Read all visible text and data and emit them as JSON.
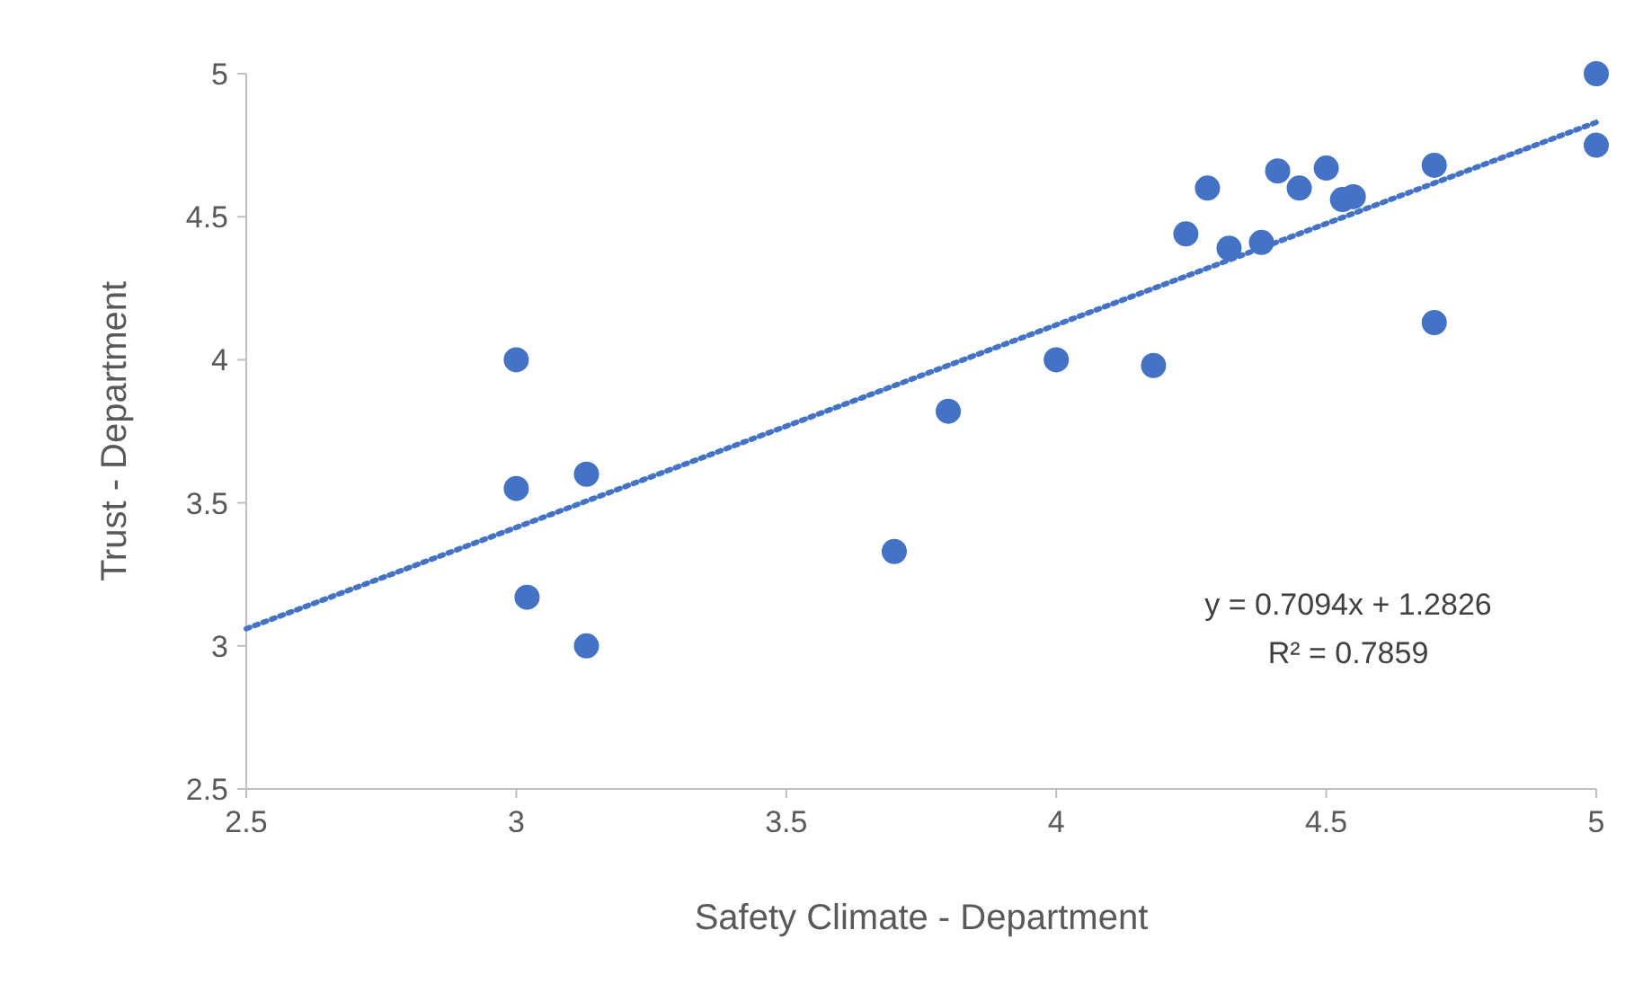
{
  "chart_data": {
    "type": "scatter",
    "xlabel": "Safety Climate - Department",
    "ylabel": "Trust - Department",
    "xlim": [
      2.5,
      5
    ],
    "xticks": [
      2.5,
      3,
      3.5,
      4,
      4.5,
      5
    ],
    "ylim": [
      2.5,
      5
    ],
    "yticks": [
      2.5,
      3,
      3.5,
      4,
      4.5,
      5
    ],
    "grid": false,
    "series": [
      {
        "color": "#4472c4",
        "marker": "circle",
        "x": [
          5,
          5,
          4.7,
          4.7,
          4.5,
          4.41,
          4.28,
          4.45,
          4.53,
          4.55,
          4.24,
          4.32,
          4.38,
          4.18,
          4.0,
          3.8,
          3.7,
          3.0,
          3.0,
          3.13,
          3.02,
          3.13
        ],
        "values": [
          5,
          4.75,
          4.68,
          4.13,
          4.67,
          4.66,
          4.6,
          4.6,
          4.56,
          4.57,
          4.44,
          4.39,
          4.41,
          3.98,
          4.0,
          3.82,
          3.33,
          4.0,
          3.55,
          3.6,
          3.17,
          3.0
        ]
      },
      {
        "type": "line",
        "color": "#4472c4",
        "line_style": "dotted",
        "x": [
          2.5,
          5
        ],
        "values": [
          3.06,
          4.83
        ]
      }
    ],
    "annotations": [
      "y = 0.7094x + 1.2826",
      "R² = 0.7859"
    ]
  }
}
